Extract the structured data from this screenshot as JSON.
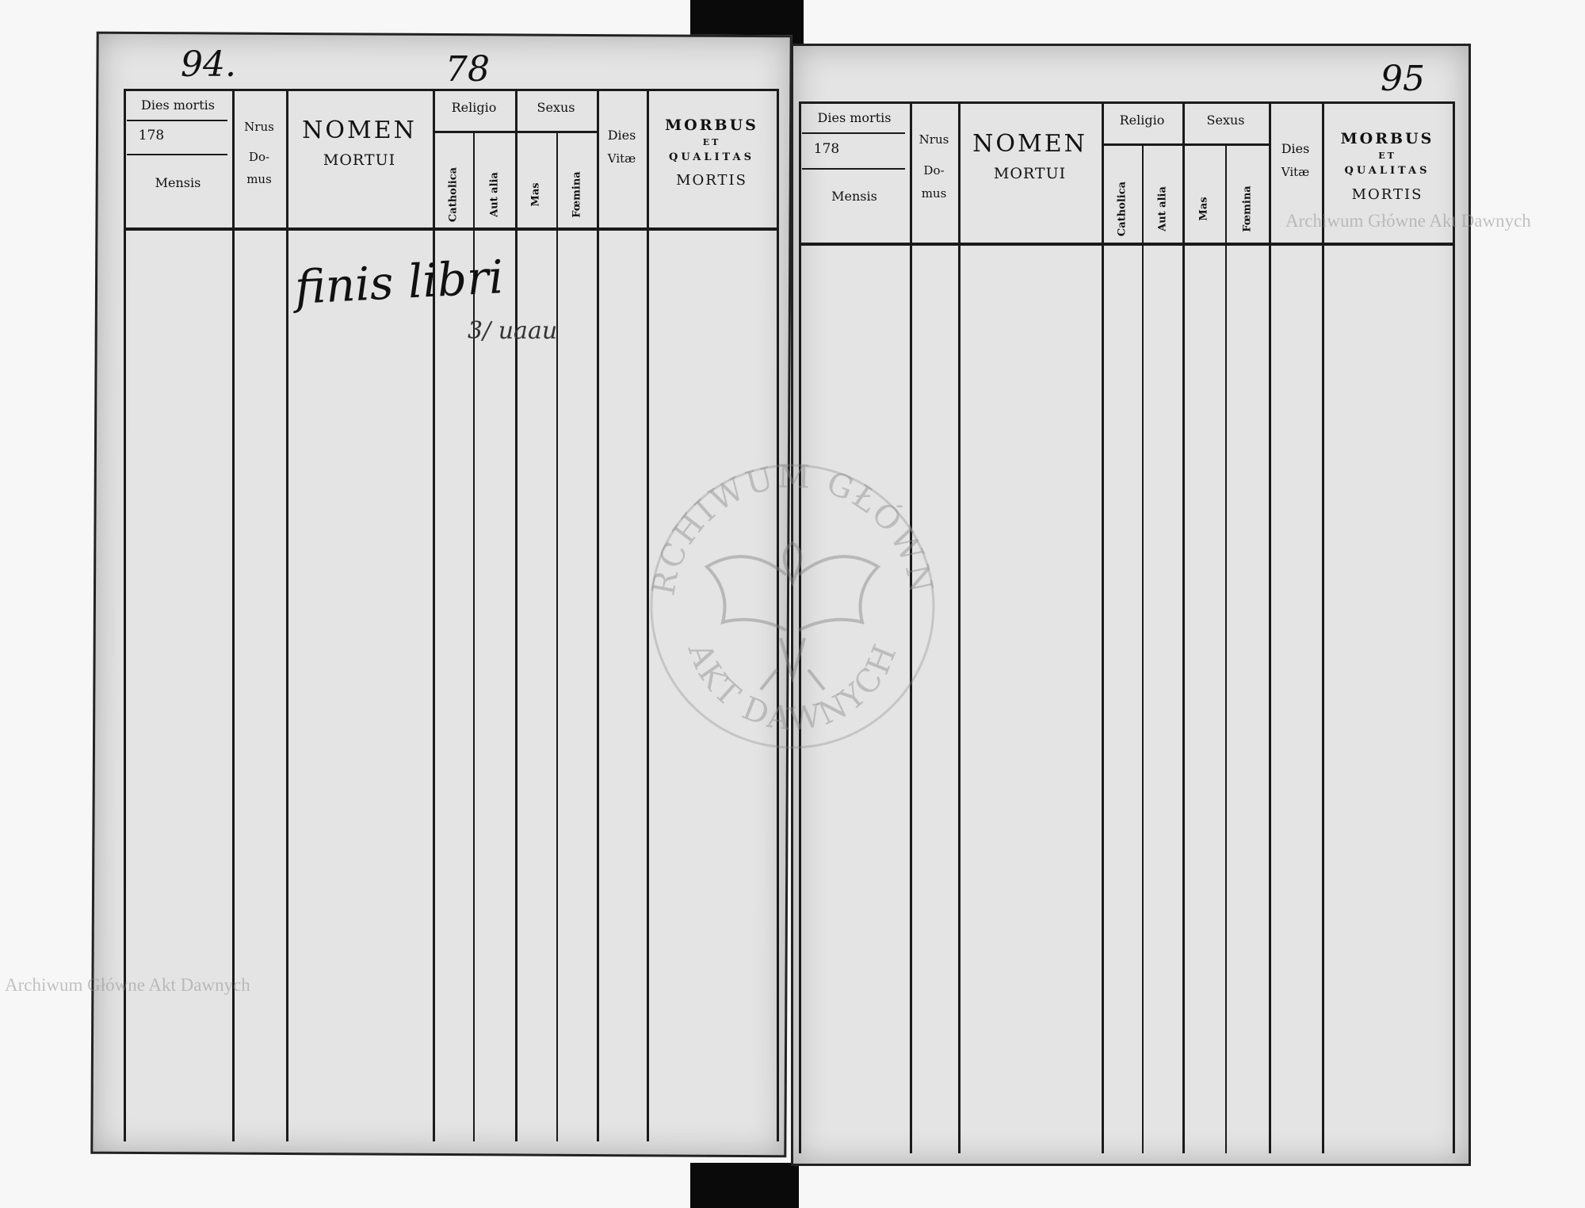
{
  "page_numbers": {
    "left": "94.",
    "left_folio": "78",
    "right": "95"
  },
  "header": {
    "dies_mortis": "Dies mortis",
    "year": "178",
    "mensis": "Mensis",
    "nrus": "Nrus",
    "do": "Do-",
    "mus": "mus",
    "nomen": "NOMEN",
    "mortui": "MORTUI",
    "religio": "Religio",
    "catholica": "Catholica",
    "aut_alia": "Aut alia",
    "sexus": "Sexus",
    "mas": "Mas",
    "foemina": "Fœmina",
    "dies": "Dies",
    "vitae": "Vitæ",
    "morbus": "MORBUS",
    "et": "ET",
    "qualitas": "QUALITAS",
    "mortis": "MORTIS"
  },
  "handwriting": {
    "main": "finis libri",
    "flourish": "3/ uaau"
  },
  "watermark": {
    "text": "Archiwum Główne Akt Dawnych",
    "seal_text_top": "ARCHIWUM GŁÓWNE",
    "seal_text_bottom": "AKT DAWNYCH"
  }
}
